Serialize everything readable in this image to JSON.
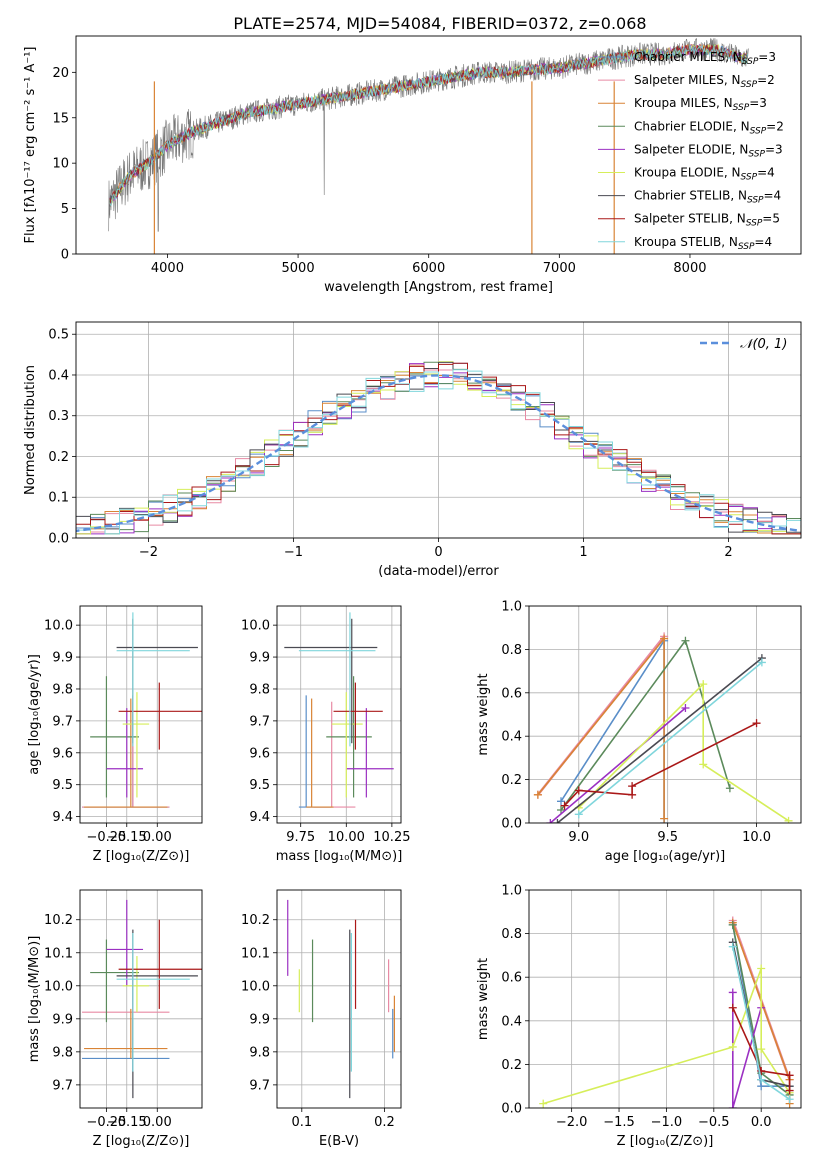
{
  "figure_title": "PLATE=2574, MJD=54084, FIBERID=0372, z=0.068",
  "colors": {
    "Chabrier MILES": "#5a8ec8",
    "Salpeter MILES": "#e88aa4",
    "Kroupa MILES": "#d98436",
    "Chabrier ELODIE": "#5b8a5b",
    "Salpeter ELODIE": "#9b30c2",
    "Kroupa ELODIE": "#d6ee5a",
    "Chabrier STELIB": "#4a4a52",
    "Salpeter STELIB": "#aa1818",
    "Kroupa STELIB": "#80d6dc",
    "gaussian": "#5b8fdc"
  },
  "chart_data": [
    {
      "type": "line",
      "panel": "spectrum",
      "xlabel": "wavelength [Angstrom, rest frame]",
      "ylabel": "Flux [fλ10⁻¹⁷ erg cm⁻² s⁻¹ A⁻¹]",
      "xlim": [
        3300,
        8850
      ],
      "ylim": [
        0,
        24
      ],
      "xticks": [
        "4000",
        "5000",
        "6000",
        "7000",
        "8000"
      ],
      "yticks": [
        "0",
        "5",
        "10",
        "15",
        "20"
      ],
      "legend_position": "right",
      "data_envelope": {
        "x": [
          3550,
          3700,
          3900,
          4000,
          4200,
          4400,
          4600,
          4800,
          5000,
          5200,
          5400,
          5600,
          5800,
          6000,
          6200,
          6400,
          6600,
          6800,
          7000,
          7200,
          7400,
          7600,
          7800,
          8000,
          8200,
          8400
        ],
        "y": [
          5.5,
          8.5,
          10.5,
          12.0,
          13.5,
          14.5,
          15.5,
          16.0,
          16.5,
          17.0,
          17.5,
          18.0,
          18.5,
          19.0,
          19.5,
          20.0,
          20.0,
          20.3,
          20.5,
          21.0,
          21.5,
          22.0,
          22.0,
          22.5,
          22.5,
          21.5
        ]
      },
      "series": [
        {
          "name": "Chabrier MILES",
          "sub": "SSP",
          "n": 3
        },
        {
          "name": "Salpeter MILES",
          "sub": "SSP",
          "n": 2
        },
        {
          "name": "Kroupa MILES",
          "sub": "SSP",
          "n": 3
        },
        {
          "name": "Chabrier ELODIE",
          "sub": "SSP",
          "n": 2
        },
        {
          "name": "Salpeter ELODIE",
          "sub": "SSP",
          "n": 3
        },
        {
          "name": "Kroupa ELODIE",
          "sub": "SSP",
          "n": 4
        },
        {
          "name": "Chabrier STELIB",
          "sub": "SSP",
          "n": 4
        },
        {
          "name": "Salpeter STELIB",
          "sub": "SSP",
          "n": 5
        },
        {
          "name": "Kroupa STELIB",
          "sub": "SSP",
          "n": 4
        }
      ]
    },
    {
      "type": "line",
      "panel": "residuals",
      "xlabel": "(data-model)/error",
      "ylabel": "Normed distribution",
      "xlim": [
        -2.5,
        2.5
      ],
      "ylim": [
        0,
        0.53
      ],
      "xticks": [
        "−2",
        "−1",
        "0",
        "1",
        "2"
      ],
      "yticks": [
        "0.0",
        "0.1",
        "0.2",
        "0.3",
        "0.4",
        "0.5"
      ],
      "legend_position": "upper right",
      "legend": "𝒩(0, 1)",
      "bin_width": 0.1,
      "grid": true
    },
    {
      "type": "scatter",
      "panel": "age_vs_Z",
      "xlabel": "Z [log₁₀(Z/Z⊙)]",
      "ylabel": "age  [log₁₀(age/yr)]",
      "xlim": [
        -0.38,
        0.22
      ],
      "ylim": [
        9.38,
        10.06
      ],
      "xticks": [
        "−0.25",
        "−0.15",
        "0.00"
      ],
      "yticks": [
        "9.4",
        "9.5",
        "9.6",
        "9.7",
        "9.8",
        "9.9",
        "10.0"
      ],
      "grid": true
    },
    {
      "type": "scatter",
      "panel": "age_vs_mass",
      "xlabel": "mass [log₁₀(M/M⊙)]",
      "xlim": [
        9.62,
        10.3
      ],
      "ylim": [
        9.38,
        10.06
      ],
      "xticks": [
        "9.75",
        "10.00",
        "10.25"
      ],
      "yticks": [
        "9.4",
        "9.5",
        "9.6",
        "9.7",
        "9.8",
        "9.9",
        "10.0"
      ],
      "grid": true
    },
    {
      "type": "line",
      "panel": "weight_vs_age",
      "xlabel": "age  [log₁₀(age/yr)]",
      "ylabel": "mass weight",
      "xlim": [
        8.72,
        10.25
      ],
      "ylim": [
        0,
        1.0
      ],
      "xticks": [
        "9.0",
        "9.5",
        "10.0"
      ],
      "yticks": [
        "0.0",
        "0.2",
        "0.4",
        "0.6",
        "0.8",
        "1.0"
      ],
      "grid": true,
      "series": [
        {
          "name": "Chabrier MILES",
          "x": [
            8.9,
            9.48,
            9.48
          ],
          "y": [
            0.1,
            0.84,
            0.0
          ]
        },
        {
          "name": "Salpeter MILES",
          "x": [
            8.77,
            9.48
          ],
          "y": [
            0.13,
            0.86
          ]
        },
        {
          "name": "Kroupa MILES",
          "x": [
            8.77,
            9.48,
            9.48
          ],
          "y": [
            0.13,
            0.85,
            0.02
          ]
        },
        {
          "name": "Chabrier ELODIE",
          "x": [
            8.9,
            9.6,
            9.85
          ],
          "y": [
            0.06,
            0.84,
            0.16
          ]
        },
        {
          "name": "Salpeter ELODIE",
          "x": [
            8.84,
            9.6
          ],
          "y": [
            0.0,
            0.53
          ]
        },
        {
          "name": "Kroupa ELODIE",
          "x": [
            9.0,
            9.7,
            9.7,
            10.18
          ],
          "y": [
            0.07,
            0.64,
            0.27,
            0.01
          ]
        },
        {
          "name": "Chabrier STELIB",
          "x": [
            8.88,
            10.03
          ],
          "y": [
            0.0,
            0.76
          ]
        },
        {
          "name": "Salpeter STELIB",
          "x": [
            8.92,
            9.0,
            9.3,
            9.3,
            10.0
          ],
          "y": [
            0.08,
            0.15,
            0.13,
            0.17,
            0.46
          ]
        },
        {
          "name": "Kroupa STELIB",
          "x": [
            9.0,
            10.03
          ],
          "y": [
            0.04,
            0.74
          ]
        }
      ]
    },
    {
      "type": "scatter",
      "panel": "mass_vs_Z",
      "xlabel": "Z [log₁₀(Z/Z⊙)]",
      "ylabel": "mass [log₁₀(M/M⊙)]",
      "xlim": [
        -0.38,
        0.22
      ],
      "ylim": [
        9.63,
        10.29
      ],
      "xticks": [
        "−0.25",
        "−0.15",
        "0.00"
      ],
      "yticks": [
        "9.7",
        "9.8",
        "9.9",
        "10.0",
        "10.1",
        "10.2"
      ],
      "grid": true
    },
    {
      "type": "scatter",
      "panel": "mass_vs_ebv",
      "xlabel": "E(B-V)",
      "xlim": [
        0.07,
        0.22
      ],
      "ylim": [
        9.63,
        10.29
      ],
      "xticks": [
        "0.1",
        "0.2"
      ],
      "yticks": [
        "9.7",
        "9.8",
        "9.9",
        "10.0",
        "10.1",
        "10.2"
      ],
      "grid": true
    },
    {
      "type": "line",
      "panel": "weight_vs_Z",
      "xlabel": "Z [log₁₀(Z/Z⊙)]",
      "ylabel": "mass weight",
      "xlim": [
        -2.45,
        0.42
      ],
      "ylim": [
        0,
        1.0
      ],
      "xticks": [
        "−2.0",
        "−1.5",
        "−1.0",
        "−0.5",
        "0.0"
      ],
      "yticks": [
        "0.0",
        "0.2",
        "0.4",
        "0.6",
        "0.8",
        "1.0"
      ],
      "grid": true,
      "series": [
        {
          "name": "Chabrier MILES",
          "x": [
            -0.3,
            0.0,
            0.3
          ],
          "y": [
            0.84,
            0.1,
            0.1
          ]
        },
        {
          "name": "Salpeter MILES",
          "x": [
            -0.3,
            0.3
          ],
          "y": [
            0.86,
            0.13
          ]
        },
        {
          "name": "Kroupa MILES",
          "x": [
            -0.3,
            0.3,
            0.3
          ],
          "y": [
            0.85,
            0.13,
            0.02
          ]
        },
        {
          "name": "Chabrier ELODIE",
          "x": [
            -0.3,
            0.0,
            0.3
          ],
          "y": [
            0.84,
            0.16,
            0.06
          ]
        },
        {
          "name": "Salpeter ELODIE",
          "x": [
            -0.3,
            -0.3,
            0.0
          ],
          "y": [
            0.53,
            0.0,
            0.46
          ]
        },
        {
          "name": "Kroupa ELODIE",
          "x": [
            -2.3,
            -0.3,
            0.0,
            0.0,
            0.3
          ],
          "y": [
            0.02,
            0.28,
            0.64,
            0.27,
            0.07
          ]
        },
        {
          "name": "Chabrier STELIB",
          "x": [
            -0.3,
            0.0,
            0.3
          ],
          "y": [
            0.76,
            0.13,
            0.1
          ]
        },
        {
          "name": "Salpeter STELIB",
          "x": [
            -0.3,
            0.0,
            0.3,
            0.3
          ],
          "y": [
            0.46,
            0.17,
            0.15,
            0.08
          ]
        },
        {
          "name": "Kroupa STELIB",
          "x": [
            -0.3,
            0.0,
            0.3
          ],
          "y": [
            0.74,
            0.13,
            0.04
          ]
        }
      ]
    }
  ],
  "fits": [
    {
      "name": "Chabrier MILES",
      "Z": -0.12,
      "Z_err": [
        0.25,
        0.18
      ],
      "age": 9.43,
      "age_lo": 9.43,
      "age_hi": 9.78,
      "mass": 9.78,
      "mass_lo": 9.74,
      "mass_hi": 9.92,
      "ebv": 0.21,
      "ebv_lo": 9.78,
      "ebv_hi": 9.93
    },
    {
      "name": "Salpeter MILES",
      "Z": -0.12,
      "Z_err": [
        0.25,
        0.18
      ],
      "age": 9.43,
      "age_lo": 9.43,
      "age_hi": 9.76,
      "mass": 9.92,
      "mass_lo": 9.82,
      "mass_hi": 10.05,
      "ebv": 0.205,
      "ebv_lo": 9.92,
      "ebv_hi": 10.08
    },
    {
      "name": "Kroupa MILES",
      "Z": -0.13,
      "Z_err": [
        0.23,
        0.18
      ],
      "age": 9.43,
      "age_lo": 9.43,
      "age_hi": 9.77,
      "mass": 9.81,
      "mass_lo": 9.78,
      "mass_hi": 9.93,
      "ebv": 0.212,
      "ebv_lo": 9.8,
      "ebv_hi": 9.97
    },
    {
      "name": "Chabrier ELODIE",
      "Z": -0.25,
      "Z_err": [
        0.08,
        0.16
      ],
      "age": 9.65,
      "age_lo": 9.46,
      "age_hi": 9.84,
      "mass": 10.04,
      "mass_lo": 9.89,
      "mass_hi": 10.14,
      "ebv": 0.113,
      "ebv_lo": 9.89,
      "ebv_hi": 10.14
    },
    {
      "name": "Salpeter ELODIE",
      "Z": -0.15,
      "Z_err": [
        0.1,
        0.08
      ],
      "age": 9.55,
      "age_lo": 9.46,
      "age_hi": 9.74,
      "mass": 10.11,
      "mass_lo": 10.0,
      "mass_hi": 10.26,
      "ebv": 0.083,
      "ebv_lo": 10.03,
      "ebv_hi": 10.26
    },
    {
      "name": "Kroupa ELODIE",
      "Z": -0.1,
      "Z_err": [
        0.07,
        0.06
      ],
      "age": 9.69,
      "age_lo": 9.46,
      "age_hi": 9.79,
      "mass": 10.0,
      "mass_lo": 9.92,
      "mass_hi": 10.09,
      "ebv": 0.097,
      "ebv_lo": 9.92,
      "ebv_hi": 10.05
    },
    {
      "name": "Chabrier STELIB",
      "Z": -0.12,
      "Z_err": [
        0.08,
        0.32
      ],
      "age": 9.93,
      "age_lo": 9.63,
      "age_hi": 10.02,
      "mass": 10.03,
      "mass_lo": 9.66,
      "mass_hi": 10.17,
      "ebv": 0.158,
      "ebv_lo": 9.66,
      "ebv_hi": 10.17
    },
    {
      "name": "Salpeter STELIB",
      "Z": 0.01,
      "Z_err": [
        0.2,
        0.22
      ],
      "age": 9.73,
      "age_lo": 9.61,
      "age_hi": 9.82,
      "mass": 10.05,
      "mass_lo": 9.93,
      "mass_hi": 10.2,
      "ebv": 0.165,
      "ebv_lo": 9.93,
      "ebv_hi": 10.2
    },
    {
      "name": "Kroupa STELIB",
      "Z": -0.12,
      "Z_err": [
        0.08,
        0.28
      ],
      "age": 9.92,
      "age_lo": 9.62,
      "age_hi": 10.04,
      "mass": 10.02,
      "mass_lo": 9.74,
      "mass_hi": 10.16,
      "ebv": 0.16,
      "ebv_lo": 9.74,
      "ebv_hi": 10.16
    }
  ]
}
